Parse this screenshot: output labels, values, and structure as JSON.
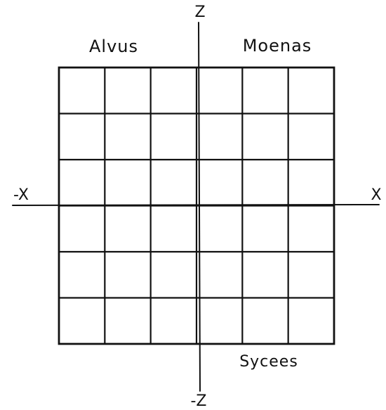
{
  "diagram": {
    "axes": {
      "top_label": "Z",
      "bottom_label": "-Z",
      "left_label": "-X",
      "right_label": "X"
    },
    "regions": {
      "upper_left": "Alvus",
      "upper_right": "Moenas",
      "lower_right": "Sycees"
    },
    "grid": {
      "rows": 6,
      "columns": 6
    },
    "colors": {
      "ink": "#111111",
      "paper": "#ffffff"
    }
  }
}
